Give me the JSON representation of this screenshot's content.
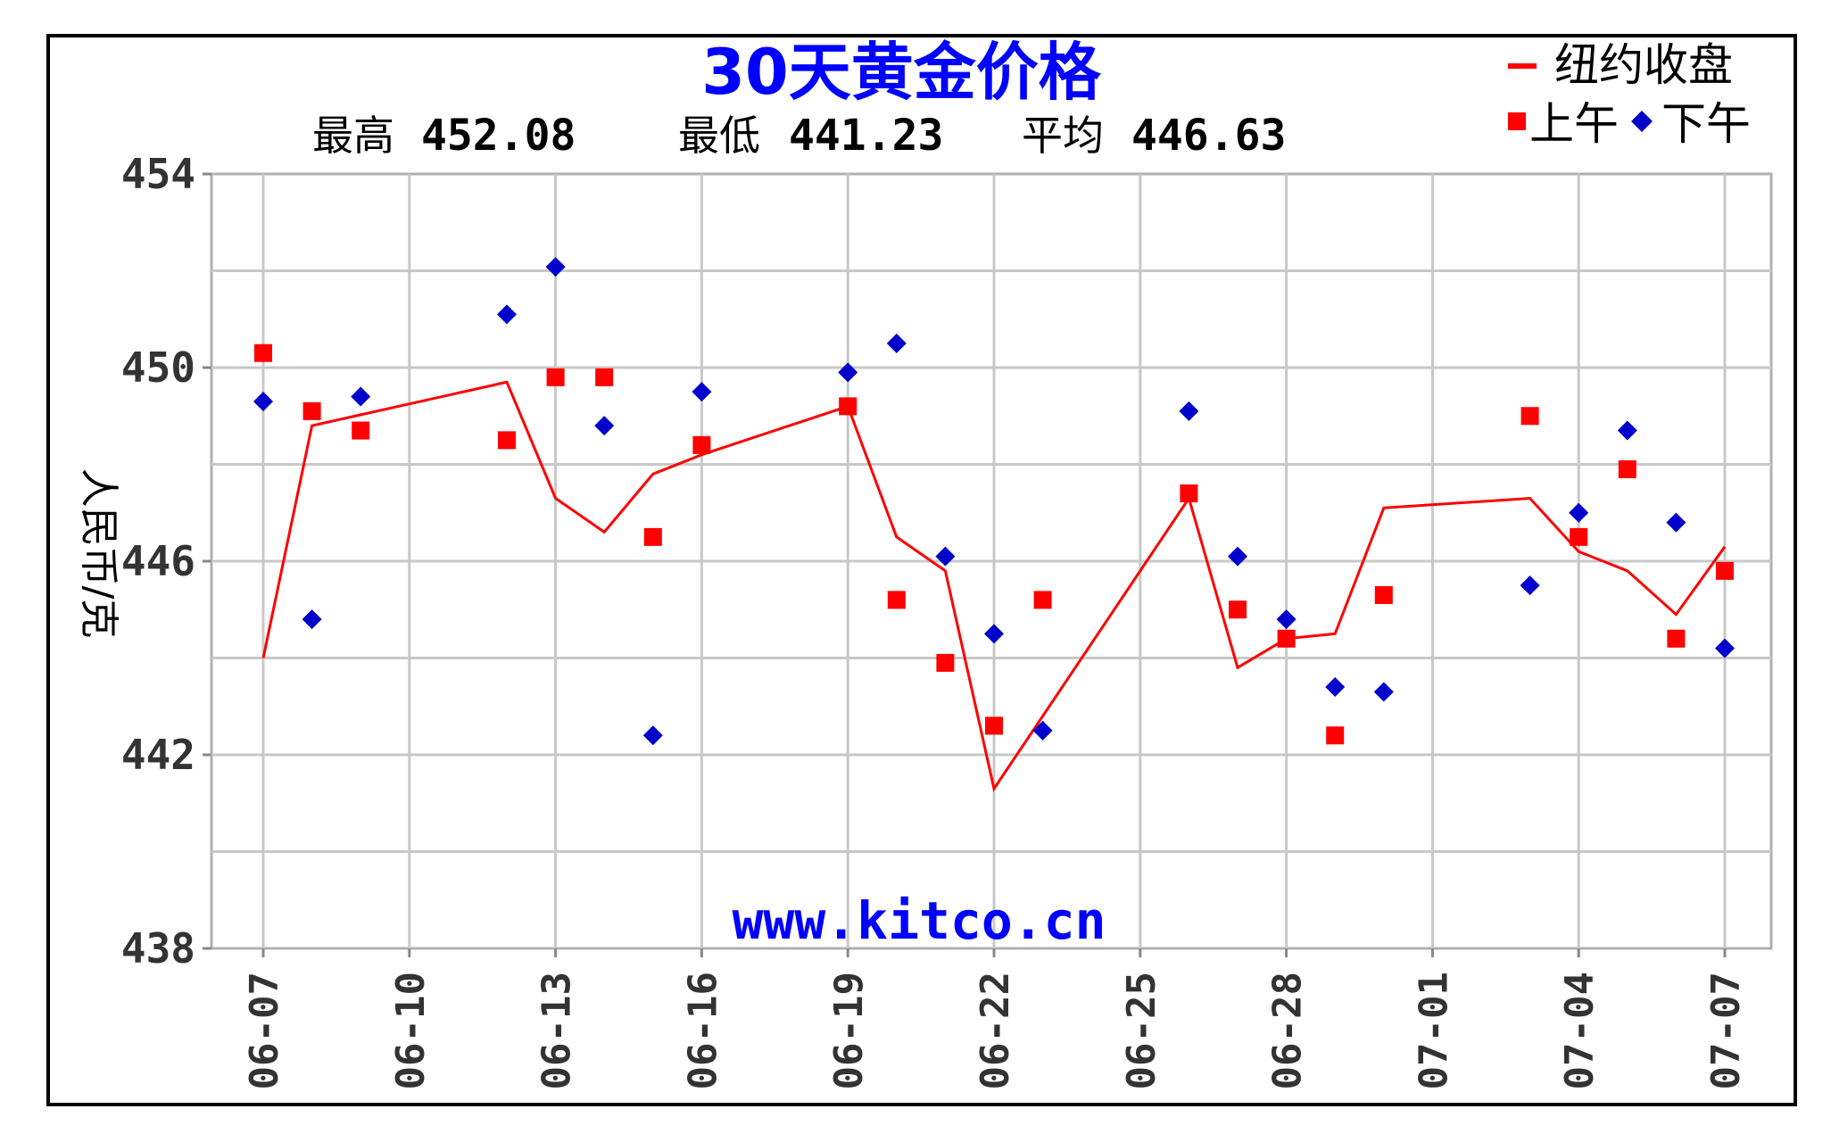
{
  "chart_data": {
    "type": "line",
    "title": "30天黄金价格",
    "stats": {
      "high_label": "最高",
      "high_value": "452.08",
      "low_label": "最低",
      "low_value": "441.23",
      "avg_label": "平均",
      "avg_value": "446.63"
    },
    "ylabel": "人民币/克",
    "xlabel": "",
    "ylim": [
      438,
      454
    ],
    "yticks": [
      438,
      442,
      446,
      450,
      454
    ],
    "x_range": [
      "06-07",
      "07-07"
    ],
    "xticks": [
      "06-07",
      "06-10",
      "06-13",
      "06-16",
      "06-19",
      "06-22",
      "06-25",
      "06-28",
      "07-01",
      "07-04",
      "07-07"
    ],
    "grid": true,
    "legend_position": "top-right",
    "watermark": "www.kitco.cn",
    "colors": {
      "close": "#ff0000",
      "am": "#ff0000",
      "pm": "#0000cc",
      "grid": "#c8c8c8"
    },
    "series": [
      {
        "name": "纽约收盘",
        "type": "line",
        "points": [
          [
            "06-07",
            444.0
          ],
          [
            "06-08",
            448.8
          ],
          [
            "06-12",
            449.7
          ],
          [
            "06-13",
            447.3
          ],
          [
            "06-14",
            446.6
          ],
          [
            "06-15",
            447.8
          ],
          [
            "06-16",
            448.2
          ],
          [
            "06-19",
            449.2
          ],
          [
            "06-20",
            446.5
          ],
          [
            "06-21",
            445.8
          ],
          [
            "06-22",
            441.3
          ],
          [
            "06-26",
            447.3
          ],
          [
            "06-27",
            443.8
          ],
          [
            "06-28",
            444.4
          ],
          [
            "06-29",
            444.5
          ],
          [
            "06-30",
            447.1
          ],
          [
            "07-03",
            447.3
          ],
          [
            "07-04",
            446.2
          ],
          [
            "07-05",
            445.8
          ],
          [
            "07-06",
            444.9
          ],
          [
            "07-07",
            446.3
          ]
        ]
      },
      {
        "name": "上午",
        "type": "scatter",
        "marker": "square",
        "points": [
          [
            "06-07",
            450.3
          ],
          [
            "06-08",
            449.1
          ],
          [
            "06-09",
            448.7
          ],
          [
            "06-12",
            448.5
          ],
          [
            "06-13",
            449.8
          ],
          [
            "06-14",
            449.8
          ],
          [
            "06-15",
            446.5
          ],
          [
            "06-16",
            448.4
          ],
          [
            "06-19",
            449.2
          ],
          [
            "06-20",
            445.2
          ],
          [
            "06-21",
            443.9
          ],
          [
            "06-22",
            442.6
          ],
          [
            "06-23",
            445.2
          ],
          [
            "06-26",
            447.4
          ],
          [
            "06-27",
            445.0
          ],
          [
            "06-28",
            444.4
          ],
          [
            "06-29",
            442.4
          ],
          [
            "06-30",
            445.3
          ],
          [
            "07-03",
            449.0
          ],
          [
            "07-04",
            446.5
          ],
          [
            "07-05",
            447.9
          ],
          [
            "07-06",
            444.4
          ],
          [
            "07-07",
            445.8
          ]
        ]
      },
      {
        "name": "下午",
        "type": "scatter",
        "marker": "diamond",
        "points": [
          [
            "06-07",
            449.3
          ],
          [
            "06-08",
            444.8
          ],
          [
            "06-09",
            449.4
          ],
          [
            "06-12",
            451.1
          ],
          [
            "06-13",
            452.08
          ],
          [
            "06-14",
            448.8
          ],
          [
            "06-15",
            442.4
          ],
          [
            "06-16",
            449.5
          ],
          [
            "06-19",
            449.9
          ],
          [
            "06-20",
            450.5
          ],
          [
            "06-21",
            446.1
          ],
          [
            "06-22",
            444.5
          ],
          [
            "06-23",
            442.5
          ],
          [
            "06-26",
            449.1
          ],
          [
            "06-27",
            446.1
          ],
          [
            "06-28",
            444.8
          ],
          [
            "06-29",
            443.4
          ],
          [
            "06-30",
            443.3
          ],
          [
            "07-03",
            445.5
          ],
          [
            "07-04",
            447.0
          ],
          [
            "07-05",
            448.7
          ],
          [
            "07-06",
            446.8
          ],
          [
            "07-07",
            444.2
          ]
        ]
      }
    ]
  }
}
